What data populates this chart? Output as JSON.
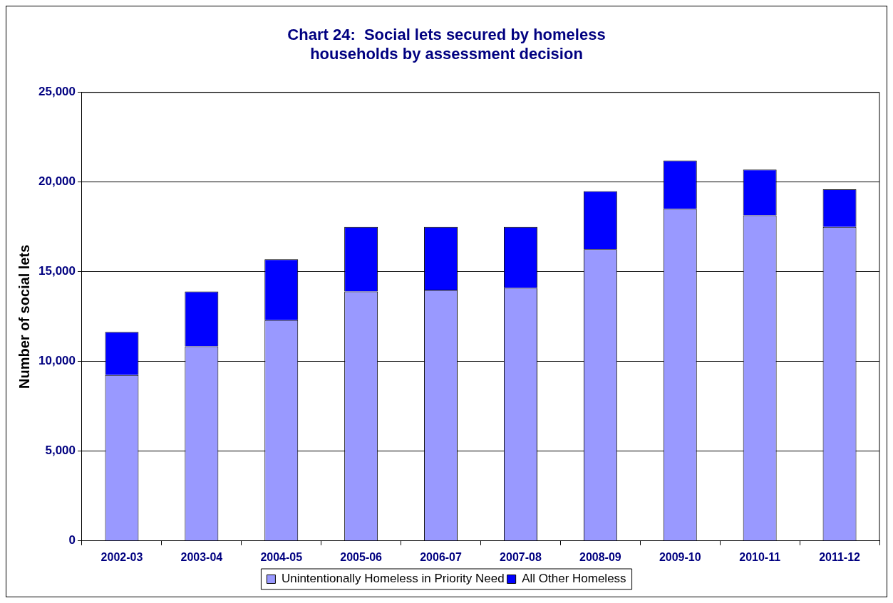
{
  "chart_data": {
    "type": "bar",
    "title": "Chart 24:  Social lets secured by homeless households by assessment decision",
    "ylabel": "Number of social lets",
    "categories": [
      "2002-03",
      "2003-04",
      "2004-05",
      "2005-06",
      "2006-07",
      "2007-08",
      "2008-09",
      "2009-10",
      "2010-11",
      "2011-12"
    ],
    "stacked": true,
    "series": [
      {
        "name": "Unintentionally Homeless in Priority Need",
        "color": "#9999ff",
        "values": [
          9250,
          10850,
          12300,
          13900,
          14000,
          14100,
          16250,
          18500,
          18150,
          17500
        ]
      },
      {
        "name": "All Other Homeless",
        "color": "#0000ff",
        "values": [
          2400,
          3050,
          3400,
          3600,
          3500,
          3400,
          3250,
          2700,
          2550,
          2100
        ]
      }
    ],
    "ylim": [
      0,
      25000
    ],
    "yticks": [
      {
        "value": 0,
        "label": "0"
      },
      {
        "value": 5000,
        "label": "5,000"
      },
      {
        "value": 10000,
        "label": "10,000"
      },
      {
        "value": 15000,
        "label": "15,000"
      },
      {
        "value": 20000,
        "label": "20,000"
      },
      {
        "value": 25000,
        "label": "25,000"
      }
    ],
    "grid": "y",
    "legend": "bottom"
  }
}
